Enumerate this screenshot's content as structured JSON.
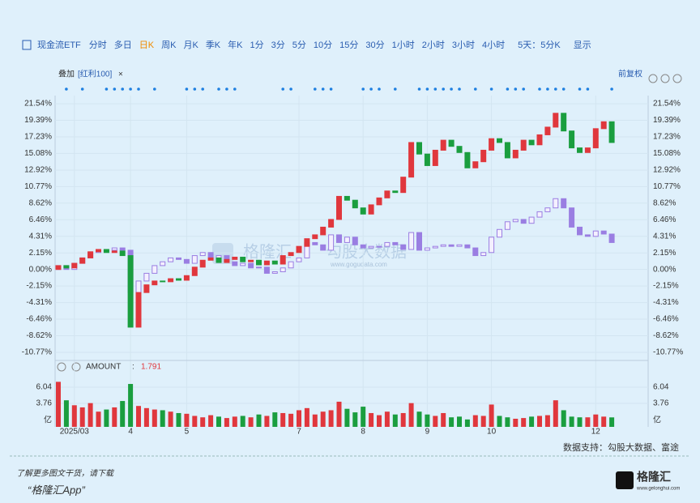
{
  "toolbar": {
    "items": [
      "现金流ETF",
      "分时",
      "多日",
      "日K",
      "周K",
      "月K",
      "季K",
      "年K",
      "1分",
      "3分",
      "5分",
      "10分",
      "15分",
      "30分",
      "1小时",
      "2小时",
      "3小时",
      "4小时",
      "5天：5分K",
      "显示"
    ],
    "active": 3
  },
  "overlay": {
    "label": "叠加",
    "compare": "[红利100]",
    "close": "×",
    "adjust": "前复权"
  },
  "chart_data": {
    "type": "candlestick",
    "categories": [
      null,
      null,
      "2025/03",
      null,
      null,
      null,
      null,
      null,
      null,
      "4",
      null,
      null,
      null,
      null,
      null,
      null,
      "5",
      null,
      null,
      null,
      null,
      null,
      null,
      null,
      null,
      null,
      null,
      null,
      null,
      null,
      "7",
      null,
      null,
      null,
      null,
      null,
      null,
      null,
      "8",
      null,
      null,
      null,
      null,
      null,
      null,
      null,
      "9",
      null,
      null,
      null,
      null,
      null,
      null,
      null,
      "10",
      null,
      null,
      null,
      null,
      null,
      null,
      null,
      null,
      null,
      null,
      null,
      null,
      "12",
      null,
      null
    ],
    "series": [
      {
        "name": "现金流ETF",
        "up_color": "#e0373d",
        "down_color": "#1a9e3f",
        "values": [
          0.5,
          0.2,
          0.8,
          1.5,
          2.3,
          2.6,
          2.2,
          2.4,
          1.8,
          -7.5,
          -3.0,
          -2.0,
          -1.5,
          -1.6,
          -1.2,
          -1.4,
          -0.8,
          0.3,
          1.2,
          1.5,
          0.9,
          1.3,
          1.6,
          1.0,
          1.2,
          0.6,
          1.1,
          0.7,
          1.8,
          2.2,
          3.0,
          4.0,
          4.5,
          5.5,
          6.5,
          9.5,
          9.0,
          8.0,
          7.2,
          8.4,
          9.3,
          10.2,
          10.0,
          12.0,
          16.5,
          15.0,
          13.5,
          15.5,
          16.8,
          16.0,
          15.2,
          13.2,
          14.0,
          15.5,
          17.0,
          16.5,
          14.5,
          15.5,
          16.8,
          16.2,
          17.5,
          18.5,
          20.3,
          18.0,
          15.8,
          15.2,
          15.8,
          18.3,
          19.2,
          16.5
        ]
      },
      {
        "name": "红利100",
        "color": "#9a7ee2",
        "values": [
          0.5,
          0,
          0.8,
          1.5,
          2.2,
          2.5,
          2.5,
          2.8,
          2.5,
          -3.0,
          -1.5,
          -0.5,
          0.5,
          1.0,
          1.5,
          1.3,
          0.8,
          1.8,
          2.2,
          1.5,
          1.8,
          1.0,
          0.5,
          0.8,
          0.2,
          0.3,
          -0.5,
          -0.3,
          0.2,
          1.0,
          1.5,
          3.5,
          3.2,
          2.5,
          4.5,
          3.5,
          4.2,
          3.2,
          2.8,
          3.0,
          3.0,
          3.5,
          3.2,
          2.6,
          4.8,
          2.5,
          2.8,
          3.0,
          3.2,
          3.0,
          3.2,
          2.8,
          1.8,
          2.2,
          4.2,
          5.2,
          6.2,
          6.5,
          6.0,
          6.8,
          7.5,
          8.0,
          9.2,
          8.0,
          5.5,
          4.5,
          4.3,
          5.0,
          4.6,
          3.5
        ]
      }
    ],
    "ylim": [
      -11.3,
      22.6
    ],
    "yticks": [
      {
        "value": 21.54,
        "label": "21.54%"
      },
      {
        "value": 19.39,
        "label": "19.39%"
      },
      {
        "value": 17.23,
        "label": "17.23%"
      },
      {
        "value": 15.08,
        "label": "15.08%"
      },
      {
        "value": 12.92,
        "label": "12.92%"
      },
      {
        "value": 10.77,
        "label": "10.77%"
      },
      {
        "value": 8.62,
        "label": "8.62%"
      },
      {
        "value": 6.46,
        "label": "6.46%"
      },
      {
        "value": 4.31,
        "label": "4.31%"
      },
      {
        "value": 2.15,
        "label": "2.15%"
      },
      {
        "value": 0,
        "label": "0.00%"
      },
      {
        "value": -2.15,
        "label": "-2.15%"
      },
      {
        "value": -4.31,
        "label": "-4.31%"
      },
      {
        "value": -6.46,
        "label": "-6.46%"
      },
      {
        "value": -8.62,
        "label": "-8.62%"
      },
      {
        "value": -10.77,
        "label": "-10.77%"
      }
    ],
    "events": [
      1,
      3,
      6,
      7,
      8,
      9,
      10,
      12,
      16,
      17,
      18,
      20,
      21,
      22,
      28,
      29,
      32,
      33,
      34,
      38,
      39,
      40,
      42,
      45,
      46,
      47,
      48,
      49,
      50,
      52,
      54,
      56,
      57,
      58,
      60,
      61,
      62,
      63,
      65,
      66,
      69
    ],
    "grid": true
  },
  "volume": {
    "label": "AMOUNT",
    "separator": ":",
    "current": "1.791",
    "unit": "亿",
    "values": [
      6.8,
      4.2,
      3.5,
      3.2,
      3.8,
      2.6,
      2.9,
      3.2,
      4.1,
      6.5,
      3.4,
      3.1,
      2.9,
      2.8,
      2.6,
      2.4,
      2.3,
      2.0,
      1.8,
      2.1,
      1.9,
      1.7,
      1.9,
      2.0,
      1.8,
      2.2,
      2.0,
      2.5,
      2.4,
      2.3,
      2.8,
      3.1,
      2.2,
      2.6,
      2.8,
      4.0,
      3.0,
      2.5,
      3.3,
      2.4,
      2.1,
      2.6,
      2.2,
      2.4,
      3.8,
      2.6,
      2.2,
      2.0,
      2.4,
      1.8,
      1.9,
      1.5,
      2.1,
      2.0,
      3.6,
      2.0,
      1.8,
      1.6,
      1.7,
      1.9,
      2.0,
      2.1,
      4.2,
      2.8,
      1.9,
      1.8,
      1.8,
      2.2,
      1.9,
      1.791
    ],
    "ylim": [
      0,
      8.1
    ],
    "yticks": [
      6.04,
      3.76
    ]
  },
  "source": "数据支持：勾股大数据、富途",
  "watermark": {
    "brand": "格隆汇",
    "partner": "勾股大数据",
    "url": "www.gogudata.com"
  },
  "footer": {
    "note": "了解更多图文干货，请下载",
    "app": "“格隆汇App”",
    "logo": "格隆汇",
    "logo_sub": "www.gelonghui.com"
  }
}
